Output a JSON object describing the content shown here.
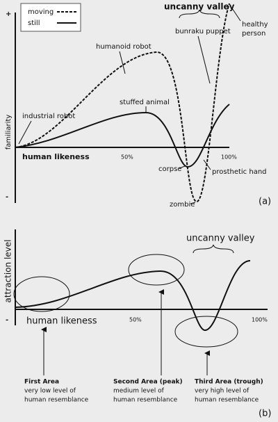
{
  "panel_a": {
    "legend": [
      "moving",
      "still"
    ],
    "title": "uncanny valley",
    "y_label": "familiarity",
    "y_top": "+",
    "y_bottom": "-",
    "x_label": "human likeness",
    "x_ticks": [
      "50%",
      "100%"
    ],
    "annotations": {
      "bunraku": "bunraku puppet",
      "healthy_1": "healthy",
      "healthy_2": "person",
      "humanoid": "humanoid robot",
      "stuffed": "stuffed animal",
      "industrial": "industrial robot",
      "corpse": "corpse",
      "prosthetic": "prosthetic hand",
      "zombie": "zombie"
    },
    "tag": "(a)"
  },
  "panel_b": {
    "title": "uncanny valley",
    "y_label": "attraction level",
    "y_bottom": "-",
    "x_label": "human likeness",
    "x_ticks": [
      "50%",
      "100%"
    ],
    "areas": [
      {
        "name": "First Area",
        "lines": [
          "very low level of",
          "human resemblance"
        ]
      },
      {
        "name": "Second Area (peak)",
        "lines": [
          "medium level of",
          "human resemblance"
        ]
      },
      {
        "name": "Third Area (trough)",
        "lines": [
          "very high level of",
          "human resemblance"
        ]
      }
    ],
    "tag": "(b)"
  }
}
